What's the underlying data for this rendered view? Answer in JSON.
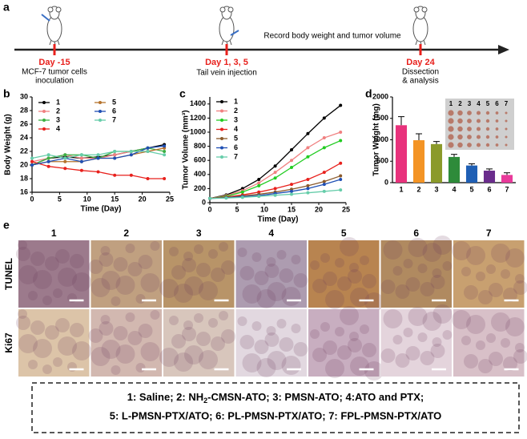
{
  "panel_labels": [
    "a",
    "b",
    "c",
    "d",
    "e"
  ],
  "timeline": {
    "events": [
      {
        "day": "Day -15",
        "note": [
          "MCF-7 tumor cells",
          "inoculation"
        ]
      },
      {
        "day": "Day 1, 3, 5",
        "note": [
          "Tail vein injection"
        ]
      },
      {
        "day": "Day 24",
        "note": [
          "Dissection",
          "& analysis"
        ]
      }
    ],
    "record": "Record body weight and tumor volume"
  },
  "chart_data": [
    {
      "type": "line",
      "xlabel": "Time (Day)",
      "ylabel": "Body Weight (g)",
      "x": [
        0,
        3,
        6,
        9,
        12,
        15,
        18,
        21,
        24
      ],
      "xlim": [
        0,
        25
      ],
      "xticks": [
        0,
        5,
        10,
        15,
        20,
        25
      ],
      "ylim": [
        16,
        30
      ],
      "yticks": [
        16,
        18,
        20,
        22,
        24,
        26,
        28,
        30
      ],
      "series": [
        {
          "name": "1",
          "color": "#000000",
          "values": [
            20,
            21,
            21.2,
            21,
            21.2,
            21.5,
            22,
            22.5,
            23
          ]
        },
        {
          "name": "2",
          "color": "#f08080",
          "values": [
            20.5,
            21,
            21.5,
            21,
            21,
            21.5,
            22,
            22,
            22.5
          ]
        },
        {
          "name": "3",
          "color": "#3cb043",
          "values": [
            20,
            21,
            21.5,
            21.5,
            21,
            22,
            22,
            22.5,
            22
          ]
        },
        {
          "name": "4",
          "color": "#e8201c",
          "values": [
            20.5,
            19.8,
            19.5,
            19.2,
            19,
            18.5,
            18.5,
            18,
            18
          ]
        },
        {
          "name": "5",
          "color": "#b5732d",
          "values": [
            20,
            20.5,
            20.5,
            20.5,
            21,
            21,
            21.5,
            22,
            22.5
          ]
        },
        {
          "name": "6",
          "color": "#1f4fb4",
          "values": [
            20,
            20.5,
            21,
            20.5,
            21,
            21,
            21.5,
            22.5,
            22.8
          ]
        },
        {
          "name": "7",
          "color": "#66cdaa",
          "values": [
            21,
            21.5,
            21,
            21.5,
            21.5,
            22,
            22,
            22,
            21.5
          ]
        }
      ]
    },
    {
      "type": "line",
      "xlabel": "Time (Day)",
      "ylabel": "Tumor Volume (mm³)",
      "x": [
        0,
        3,
        6,
        9,
        12,
        15,
        18,
        21,
        24
      ],
      "xlim": [
        0,
        25
      ],
      "xticks": [
        0,
        5,
        10,
        15,
        20,
        25
      ],
      "ylim": [
        0,
        1500
      ],
      "yticks": [
        0,
        200,
        400,
        600,
        800,
        1000,
        1200,
        1400
      ],
      "series": [
        {
          "name": "1",
          "color": "#000000",
          "values": [
            60,
            110,
            200,
            330,
            520,
            750,
            980,
            1200,
            1380
          ]
        },
        {
          "name": "2",
          "color": "#f08080",
          "values": [
            60,
            100,
            170,
            280,
            430,
            600,
            780,
            920,
            1000
          ]
        },
        {
          "name": "3",
          "color": "#22cc22",
          "values": [
            60,
            90,
            150,
            240,
            350,
            500,
            650,
            780,
            880
          ]
        },
        {
          "name": "4",
          "color": "#e8201c",
          "values": [
            60,
            80,
            110,
            150,
            200,
            260,
            330,
            430,
            560
          ]
        },
        {
          "name": "5",
          "color": "#8b5a2b",
          "values": [
            60,
            75,
            95,
            120,
            150,
            190,
            240,
            300,
            380
          ]
        },
        {
          "name": "6",
          "color": "#1f4fb4",
          "values": [
            60,
            70,
            85,
            100,
            130,
            160,
            200,
            260,
            330
          ]
        },
        {
          "name": "7",
          "color": "#66cdaa",
          "values": [
            60,
            65,
            75,
            90,
            105,
            120,
            140,
            160,
            180
          ]
        }
      ]
    },
    {
      "type": "bar",
      "ylabel": "Tumor Weight (mg)",
      "categories": [
        "1",
        "2",
        "3",
        "4",
        "5",
        "6",
        "7"
      ],
      "values": [
        1340,
        990,
        900,
        600,
        400,
        280,
        180
      ],
      "errors": [
        200,
        150,
        60,
        60,
        40,
        40,
        50
      ],
      "colors": [
        "#e8327c",
        "#f39425",
        "#8b9a2a",
        "#2e8b3a",
        "#1f5fb4",
        "#6a2c8c",
        "#e83a9a"
      ],
      "ylim": [
        0,
        2000
      ],
      "yticks": [
        0,
        500,
        1000,
        1500,
        2000
      ]
    }
  ],
  "histology": {
    "columns": [
      "1",
      "2",
      "3",
      "4",
      "5",
      "6",
      "7"
    ],
    "rows": [
      "TUNEL",
      "Ki67"
    ]
  },
  "caption": {
    "line1": [
      "1: Saline; 2: NH",
      "2",
      "-CMSN-ATO; 3: PMSN-ATO; 4:ATO and PTX;"
    ],
    "line2": "5: L-PMSN-PTX/ATO; 6: PL-PMSN-PTX/ATO; 7: FPL-PMSN-PTX/ATO"
  }
}
